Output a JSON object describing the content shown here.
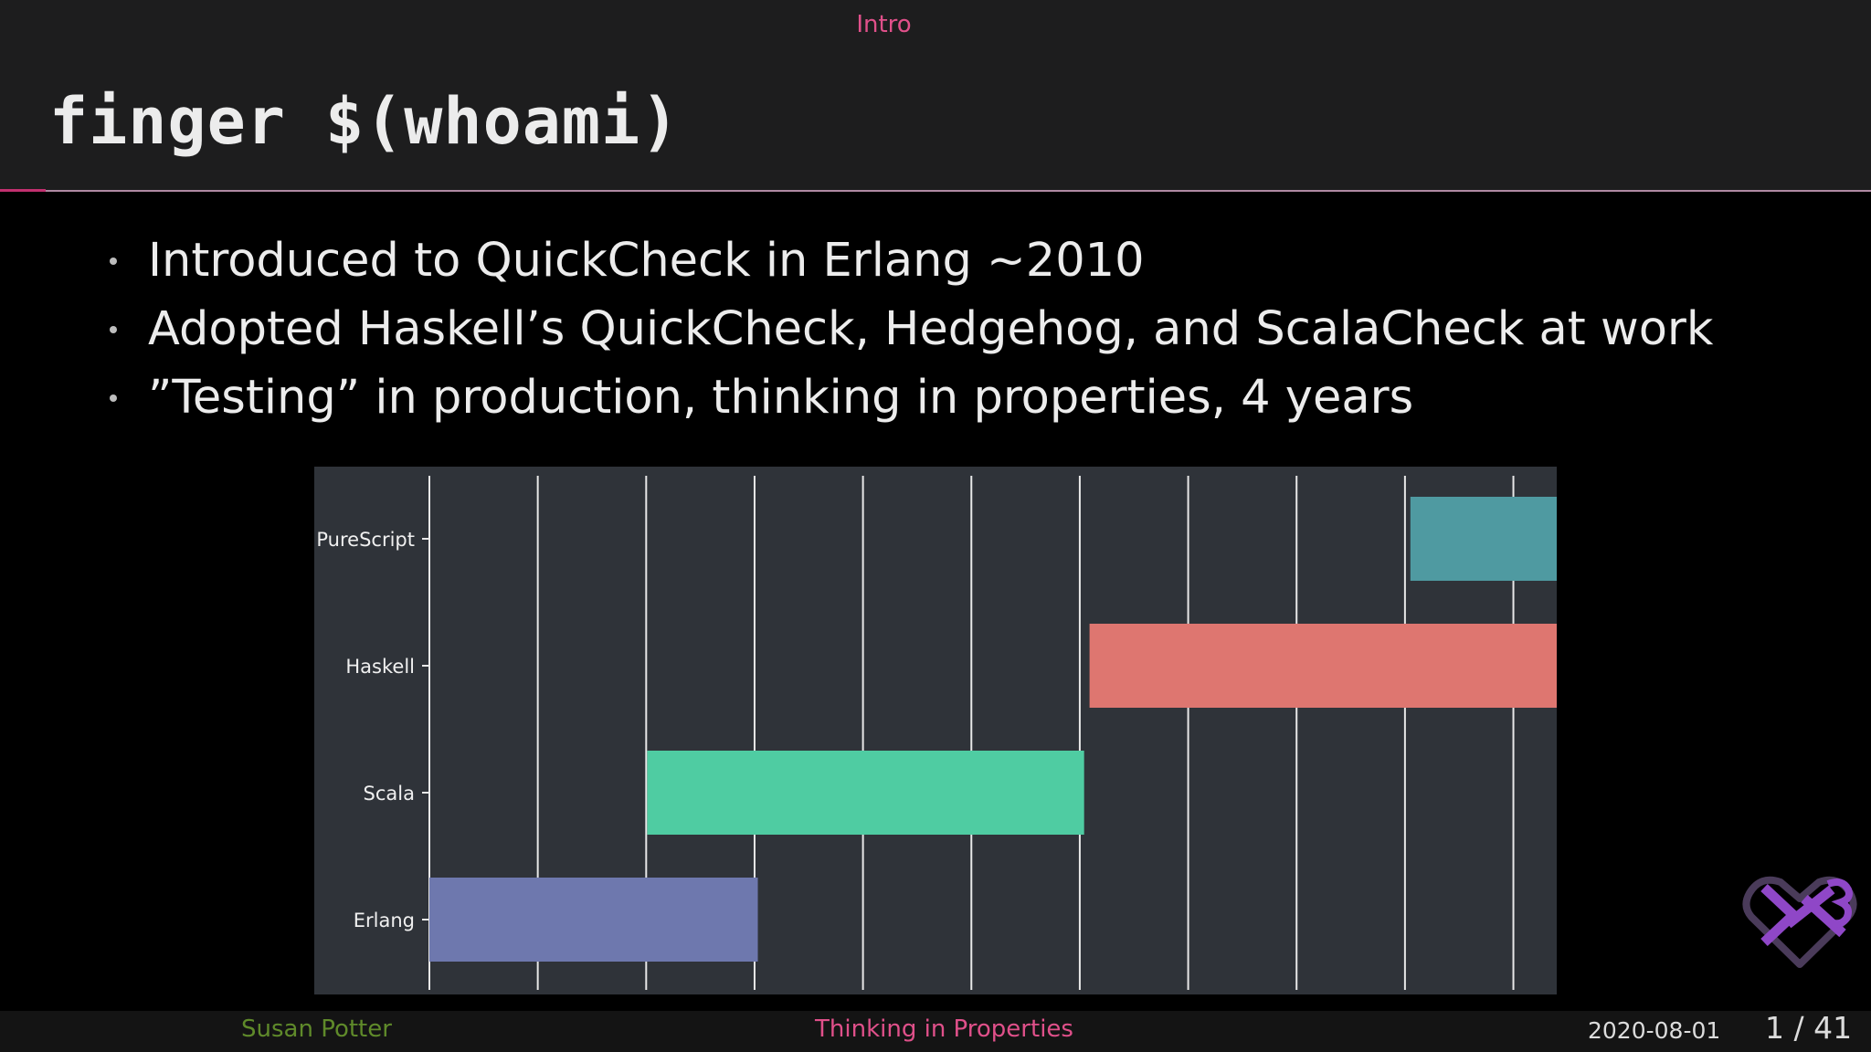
{
  "header": {
    "section": "Intro",
    "title": "finger $(whoami)"
  },
  "bullets": [
    "Introduced to QuickCheck in Erlang ~2010",
    "Adopted Haskell’s QuickCheck, Hedgehog, and ScalaCheck at work",
    "”Testing” in production, thinking in properties, 4 years"
  ],
  "chart_data": {
    "type": "bar",
    "orientation": "horizontal-timeline",
    "categories": [
      "PureScript",
      "Haskell",
      "Scala",
      "Erlang"
    ],
    "x_range": [
      0,
      10.4
    ],
    "grid": true,
    "series": [
      {
        "category": "PureScript",
        "start": 9.05,
        "end": 10.4,
        "color": "#4f9aa1"
      },
      {
        "category": "Haskell",
        "start": 6.09,
        "end": 10.4,
        "color": "#de7670"
      },
      {
        "category": "Scala",
        "start": 2.01,
        "end": 6.04,
        "color": "#4fcca2"
      },
      {
        "category": "Erlang",
        "start": 0.0,
        "end": 3.03,
        "color": "#6e78ae"
      }
    ]
  },
  "footer": {
    "author": "Susan Potter",
    "talk_title": "Thinking in Properties",
    "date": "2020-08-01",
    "page": "1 / 41"
  },
  "logo": {
    "icon": "heart-arrow-logo-icon",
    "color": "#8f47c7"
  }
}
